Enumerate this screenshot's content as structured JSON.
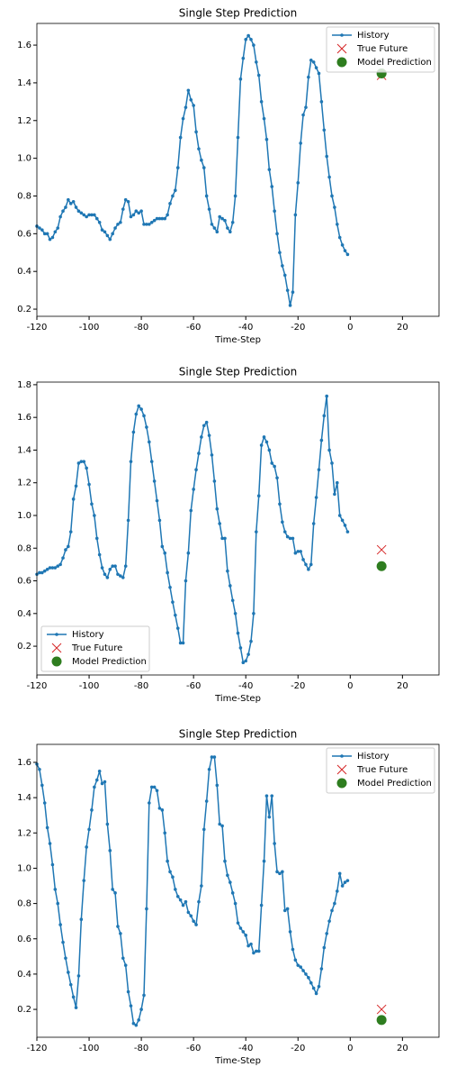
{
  "chart_data": [
    {
      "type": "line",
      "title": "Single Step Prediction",
      "xlabel": "Time-Step",
      "legend": "upper right",
      "xlim": [
        -120,
        34
      ],
      "xticks": [
        -120,
        -100,
        -80,
        -60,
        -40,
        -20,
        0,
        20
      ],
      "ylim": [
        0.162,
        1.715
      ],
      "yticks": [
        0.2,
        0.4,
        0.6,
        0.8,
        {
          "value": 1,
          "label": "1.0"
        },
        1.2,
        1.4,
        1.6
      ],
      "series": [
        {
          "name": "History",
          "color": "#1f77b4",
          "marker": "dot",
          "x": [
            -120,
            -119,
            -118,
            -117,
            -116,
            -115,
            -114,
            -113,
            -112,
            -111,
            -110,
            -109,
            -108,
            -107,
            -106,
            -105,
            -104,
            -103,
            -102,
            -101,
            -100,
            -99,
            -98,
            -97,
            -96,
            -95,
            -94,
            -93,
            -92,
            -91,
            -90,
            -89,
            -88,
            -87,
            -86,
            -85,
            -84,
            -83,
            -82,
            -81,
            -80,
            -79,
            -78,
            -77,
            -76,
            -75,
            -74,
            -73,
            -72,
            -71,
            -70,
            -69,
            -68,
            -67,
            -66,
            -65,
            -64,
            -63,
            -62,
            -61,
            -60,
            -59,
            -58,
            -57,
            -56,
            -55,
            -54,
            -53,
            -52,
            -51,
            -50,
            -49,
            -48,
            -47,
            -46,
            -45,
            -44,
            -43,
            -42,
            -41,
            -40,
            -39,
            -38,
            -37,
            -36,
            -35,
            -34,
            -33,
            -32,
            -31,
            -30,
            -29,
            -28,
            -27,
            -26,
            -25,
            -24,
            -23,
            -22,
            -21,
            -20,
            -19,
            -18,
            -17,
            -16,
            -15,
            -14,
            -13,
            -12,
            -11,
            -10,
            -9,
            -8,
            -7,
            -6,
            -5,
            -4,
            -3,
            -2,
            -1
          ],
          "values": [
            0.64,
            0.63,
            0.62,
            0.6,
            0.6,
            0.57,
            0.58,
            0.61,
            0.63,
            0.69,
            0.72,
            0.74,
            0.78,
            0.76,
            0.77,
            0.74,
            0.72,
            0.71,
            0.7,
            0.69,
            0.7,
            0.7,
            0.7,
            0.68,
            0.66,
            0.62,
            0.61,
            0.59,
            0.57,
            0.6,
            0.63,
            0.65,
            0.66,
            0.73,
            0.78,
            0.77,
            0.69,
            0.7,
            0.72,
            0.71,
            0.72,
            0.65,
            0.65,
            0.65,
            0.66,
            0.67,
            0.68,
            0.68,
            0.68,
            0.68,
            0.7,
            0.76,
            0.8,
            0.83,
            0.95,
            1.11,
            1.21,
            1.27,
            1.36,
            1.31,
            1.28,
            1.14,
            1.05,
            0.99,
            0.95,
            0.8,
            0.73,
            0.65,
            0.63,
            0.61,
            0.69,
            0.68,
            0.67,
            0.63,
            0.61,
            0.66,
            0.8,
            1.11,
            1.42,
            1.53,
            1.63,
            1.65,
            1.63,
            1.6,
            1.51,
            1.44,
            1.3,
            1.21,
            1.1,
            0.94,
            0.85,
            0.72,
            0.6,
            0.5,
            0.43,
            0.38,
            0.3,
            0.22,
            0.29,
            0.7,
            0.87,
            1.08,
            1.23,
            1.27,
            1.43,
            1.52,
            1.51,
            1.48,
            1.45,
            1.3,
            1.15,
            1.01,
            0.9,
            0.8,
            0.74,
            0.65,
            0.58,
            0.54,
            0.51,
            0.49
          ]
        },
        {
          "name": "True Future",
          "color": "#d62728",
          "marker": "x",
          "x": [
            12
          ],
          "values": [
            1.44
          ]
        },
        {
          "name": "Model Prediction",
          "color": "#2e7d1f",
          "marker": "o",
          "x": [
            12
          ],
          "values": [
            1.45
          ]
        }
      ]
    },
    {
      "type": "line",
      "title": "Single Step Prediction",
      "xlabel": "Time-Step",
      "legend": "lower left",
      "xlim": [
        -120,
        34
      ],
      "xticks": [
        -120,
        -100,
        -80,
        -60,
        -40,
        -20,
        0,
        20
      ],
      "ylim": [
        0.024,
        1.816
      ],
      "yticks": [
        0.2,
        0.4,
        0.6,
        0.8,
        {
          "value": 1,
          "label": "1.0"
        },
        1.2,
        1.4,
        1.6,
        1.8
      ],
      "series": [
        {
          "name": "History",
          "color": "#1f77b4",
          "marker": "dot",
          "x": [
            -120,
            -119,
            -118,
            -117,
            -116,
            -115,
            -114,
            -113,
            -112,
            -111,
            -110,
            -109,
            -108,
            -107,
            -106,
            -105,
            -104,
            -103,
            -102,
            -101,
            -100,
            -99,
            -98,
            -97,
            -96,
            -95,
            -94,
            -93,
            -92,
            -91,
            -90,
            -89,
            -88,
            -87,
            -86,
            -85,
            -84,
            -83,
            -82,
            -81,
            -80,
            -79,
            -78,
            -77,
            -76,
            -75,
            -74,
            -73,
            -72,
            -71,
            -70,
            -69,
            -68,
            -67,
            -66,
            -65,
            -64,
            -63,
            -62,
            -61,
            -60,
            -59,
            -58,
            -57,
            -56,
            -55,
            -54,
            -53,
            -52,
            -51,
            -50,
            -49,
            -48,
            -47,
            -46,
            -45,
            -44,
            -43,
            -42,
            -41,
            -40,
            -39,
            -38,
            -37,
            -36,
            -35,
            -34,
            -33,
            -32,
            -31,
            -30,
            -29,
            -28,
            -27,
            -26,
            -25,
            -24,
            -23,
            -22,
            -21,
            -20,
            -19,
            -18,
            -17,
            -16,
            -15,
            -14,
            -13,
            -12,
            -11,
            -10,
            -9,
            -8,
            -7,
            -6,
            -5,
            -4,
            -3,
            -2,
            -1
          ],
          "values": [
            0.64,
            0.65,
            0.65,
            0.66,
            0.67,
            0.68,
            0.68,
            0.68,
            0.69,
            0.7,
            0.74,
            0.79,
            0.81,
            0.9,
            1.1,
            1.18,
            1.32,
            1.33,
            1.33,
            1.29,
            1.19,
            1.07,
            1.0,
            0.86,
            0.76,
            0.68,
            0.64,
            0.62,
            0.67,
            0.69,
            0.69,
            0.64,
            0.63,
            0.62,
            0.69,
            0.97,
            1.33,
            1.51,
            1.62,
            1.67,
            1.65,
            1.61,
            1.54,
            1.45,
            1.33,
            1.21,
            1.09,
            0.97,
            0.81,
            0.77,
            0.65,
            0.56,
            0.47,
            0.39,
            0.31,
            0.22,
            0.22,
            0.6,
            0.77,
            1.03,
            1.16,
            1.28,
            1.38,
            1.48,
            1.55,
            1.57,
            1.49,
            1.37,
            1.21,
            1.04,
            0.95,
            0.86,
            0.86,
            0.66,
            0.57,
            0.48,
            0.4,
            0.28,
            0.19,
            0.1,
            0.11,
            0.15,
            0.23,
            0.4,
            0.9,
            1.12,
            1.43,
            1.48,
            1.45,
            1.4,
            1.32,
            1.3,
            1.23,
            1.07,
            0.96,
            0.9,
            0.87,
            0.86,
            0.86,
            0.77,
            0.78,
            0.78,
            0.73,
            0.7,
            0.67,
            0.7,
            0.95,
            1.11,
            1.28,
            1.46,
            1.61,
            1.73,
            1.4,
            1.32,
            1.13,
            1.2,
            1.0,
            0.97,
            0.94,
            0.9
          ]
        },
        {
          "name": "True Future",
          "color": "#d62728",
          "marker": "x",
          "x": [
            12
          ],
          "values": [
            0.79
          ]
        },
        {
          "name": "Model Prediction",
          "color": "#2e7d1f",
          "marker": "o",
          "x": [
            12
          ],
          "values": [
            0.69
          ]
        }
      ]
    },
    {
      "type": "line",
      "title": "Single Step Prediction",
      "xlabel": "Time-Step",
      "legend": "upper right",
      "xlim": [
        -120,
        34
      ],
      "xticks": [
        -120,
        -100,
        -80,
        -60,
        -40,
        -20,
        0,
        20
      ],
      "ylim": [
        0.042,
        1.702
      ],
      "yticks": [
        0.2,
        0.4,
        0.6,
        0.8,
        {
          "value": 1,
          "label": "1.0"
        },
        1.2,
        1.4,
        1.6
      ],
      "series": [
        {
          "name": "History",
          "color": "#1f77b4",
          "marker": "dot",
          "x": [
            -120,
            -119,
            -118,
            -117,
            -116,
            -115,
            -114,
            -113,
            -112,
            -111,
            -110,
            -109,
            -108,
            -107,
            -106,
            -105,
            -104,
            -103,
            -102,
            -101,
            -100,
            -99,
            -98,
            -97,
            -96,
            -95,
            -94,
            -93,
            -92,
            -91,
            -90,
            -89,
            -88,
            -87,
            -86,
            -85,
            -84,
            -83,
            -82,
            -81,
            -80,
            -79,
            -78,
            -77,
            -76,
            -75,
            -74,
            -73,
            -72,
            -71,
            -70,
            -69,
            -68,
            -67,
            -66,
            -65,
            -64,
            -63,
            -62,
            -61,
            -60,
            -59,
            -58,
            -57,
            -56,
            -55,
            -54,
            -53,
            -52,
            -51,
            -50,
            -49,
            -48,
            -47,
            -46,
            -45,
            -44,
            -43,
            -42,
            -41,
            -40,
            -39,
            -38,
            -37,
            -36,
            -35,
            -34,
            -33,
            -32,
            -31,
            -30,
            -29,
            -28,
            -27,
            -26,
            -25,
            -24,
            -23,
            -22,
            -21,
            -20,
            -19,
            -18,
            -17,
            -16,
            -15,
            -14,
            -13,
            -12,
            -11,
            -10,
            -9,
            -8,
            -7,
            -6,
            -5,
            -4,
            -3,
            -2,
            -1
          ],
          "values": [
            1.59,
            1.56,
            1.47,
            1.37,
            1.23,
            1.14,
            1.02,
            0.88,
            0.8,
            0.68,
            0.58,
            0.49,
            0.41,
            0.34,
            0.27,
            0.21,
            0.39,
            0.71,
            0.93,
            1.12,
            1.22,
            1.33,
            1.46,
            1.5,
            1.55,
            1.48,
            1.49,
            1.25,
            1.1,
            0.88,
            0.86,
            0.67,
            0.63,
            0.49,
            0.45,
            0.3,
            0.22,
            0.12,
            0.11,
            0.14,
            0.2,
            0.28,
            0.77,
            1.37,
            1.46,
            1.46,
            1.44,
            1.34,
            1.33,
            1.2,
            1.04,
            0.98,
            0.95,
            0.88,
            0.84,
            0.82,
            0.79,
            0.81,
            0.75,
            0.73,
            0.7,
            0.68,
            0.81,
            0.9,
            1.22,
            1.38,
            1.56,
            1.63,
            1.63,
            1.47,
            1.25,
            1.24,
            1.04,
            0.96,
            0.92,
            0.86,
            0.8,
            0.69,
            0.66,
            0.64,
            0.62,
            0.56,
            0.57,
            0.52,
            0.53,
            0.53,
            0.79,
            1.04,
            1.41,
            1.29,
            1.41,
            1.14,
            0.98,
            0.97,
            0.98,
            0.76,
            0.77,
            0.64,
            0.54,
            0.48,
            0.45,
            0.44,
            0.42,
            0.4,
            0.38,
            0.35,
            0.32,
            0.29,
            0.33,
            0.43,
            0.55,
            0.63,
            0.7,
            0.76,
            0.8,
            0.87,
            0.97,
            0.9,
            0.92,
            0.93
          ]
        },
        {
          "name": "True Future",
          "color": "#d62728",
          "marker": "x",
          "x": [
            12
          ],
          "values": [
            0.2
          ]
        },
        {
          "name": "Model Prediction",
          "color": "#2e7d1f",
          "marker": "o",
          "x": [
            12
          ],
          "values": [
            0.14
          ]
        }
      ]
    }
  ]
}
